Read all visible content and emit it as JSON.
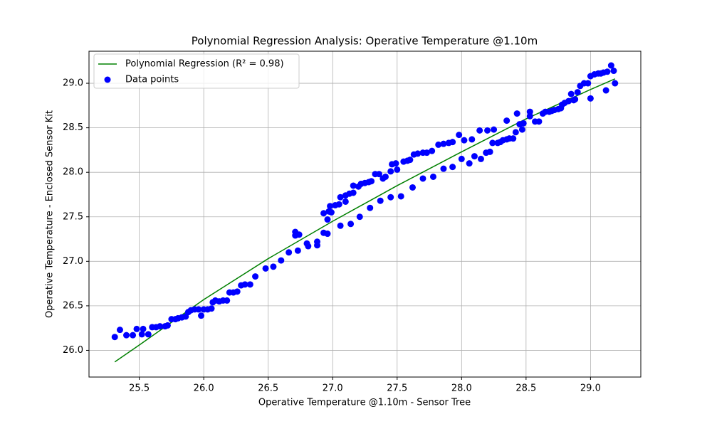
{
  "chart_data": {
    "type": "scatter",
    "title": "Polynomial Regression Analysis: Operative Temperature @1.10m",
    "x_label": "Operative Temperature @1.10m - Sensor Tree",
    "y_label": "Operative Temperature - Enclosed Sensor Kit",
    "xlim": [
      25.11,
      29.39
    ],
    "ylim": [
      25.7,
      29.36
    ],
    "xticks": [
      25.5,
      {
        "value": 26.0,
        "label": "26.0"
      },
      26.5,
      {
        "value": 27.0,
        "label": "27.0"
      },
      27.5,
      {
        "value": 28.0,
        "label": "28.0"
      },
      28.5,
      {
        "value": 29.0,
        "label": "29.0"
      }
    ],
    "yticks": [
      {
        "value": 26.0,
        "label": "26.0"
      },
      26.5,
      {
        "value": 27.0,
        "label": "27.0"
      },
      27.5,
      {
        "value": 28.0,
        "label": "28.0"
      },
      28.5,
      {
        "value": 29.0,
        "label": "29.0"
      }
    ],
    "grid": true,
    "legend": "upper left",
    "series": [
      {
        "name": "Polynomial Regression (R² = 0.98)",
        "type": "line",
        "color": "green",
        "x": [
          25.31,
          25.5,
          26.0,
          26.5,
          27.0,
          27.5,
          28.0,
          28.5,
          29.0,
          29.19
        ],
        "values": [
          25.87,
          26.06,
          26.57,
          27.03,
          27.45,
          27.85,
          28.23,
          28.6,
          28.93,
          29.05
        ]
      },
      {
        "name": "Data points",
        "type": "scatter",
        "color": "blue",
        "x": [
          25.31,
          25.35,
          25.4,
          25.45,
          25.48,
          25.52,
          25.53,
          25.57,
          25.6,
          25.63,
          25.66,
          25.7,
          25.72,
          25.75,
          25.78,
          25.8,
          25.83,
          25.86,
          25.88,
          25.9,
          25.93,
          25.96,
          25.98,
          26.0,
          26.03,
          26.06,
          26.07,
          26.09,
          26.12,
          26.15,
          26.18,
          26.2,
          26.23,
          26.26,
          26.29,
          26.32,
          26.36,
          26.4,
          26.48,
          26.54,
          26.6,
          26.66,
          26.71,
          26.71,
          26.74,
          26.73,
          26.8,
          26.81,
          26.88,
          26.88,
          26.93,
          26.93,
          26.96,
          26.96,
          26.97,
          26.98,
          26.99,
          27.02,
          27.05,
          27.06,
          27.06,
          27.1,
          27.1,
          27.13,
          27.14,
          27.16,
          27.16,
          27.2,
          27.21,
          27.22,
          27.25,
          27.28,
          27.3,
          27.29,
          27.33,
          27.36,
          27.37,
          27.39,
          27.41,
          27.45,
          27.45,
          27.46,
          27.49,
          27.5,
          27.53,
          27.55,
          27.58,
          27.6,
          27.62,
          27.63,
          27.66,
          27.7,
          27.7,
          27.73,
          27.77,
          27.78,
          27.82,
          27.86,
          27.86,
          27.9,
          27.93,
          27.93,
          27.98,
          28.0,
          28.02,
          28.06,
          28.08,
          28.1,
          28.14,
          28.15,
          28.19,
          28.2,
          28.22,
          28.24,
          28.25,
          28.28,
          28.3,
          28.32,
          28.35,
          28.35,
          28.37,
          28.4,
          28.42,
          28.43,
          28.45,
          28.47,
          28.48,
          28.53,
          28.53,
          28.57,
          28.6,
          28.63,
          28.65,
          28.68,
          28.7,
          28.72,
          28.75,
          28.77,
          28.78,
          28.8,
          28.83,
          28.85,
          28.87,
          28.88,
          28.9,
          28.92,
          28.95,
          28.98,
          29.0,
          29.0,
          29.03,
          29.06,
          29.08,
          29.1,
          29.13,
          29.12,
          29.16,
          29.18,
          29.19
        ],
        "values": [
          26.15,
          26.23,
          26.17,
          26.17,
          26.24,
          26.18,
          26.24,
          26.18,
          26.26,
          26.26,
          26.27,
          26.27,
          26.28,
          26.35,
          26.35,
          26.36,
          26.37,
          26.38,
          26.43,
          26.45,
          26.46,
          26.46,
          26.39,
          26.46,
          26.46,
          26.47,
          26.54,
          26.56,
          26.55,
          26.56,
          26.56,
          26.65,
          26.65,
          26.66,
          26.73,
          26.74,
          26.74,
          26.83,
          26.92,
          26.94,
          27.01,
          27.1,
          27.33,
          27.29,
          27.3,
          27.12,
          27.2,
          27.17,
          27.18,
          27.22,
          27.32,
          27.54,
          27.31,
          27.47,
          27.56,
          27.62,
          27.55,
          27.63,
          27.64,
          27.72,
          27.4,
          27.67,
          27.74,
          27.76,
          27.42,
          27.77,
          27.85,
          27.84,
          27.5,
          27.87,
          27.88,
          27.89,
          27.9,
          27.6,
          27.98,
          27.98,
          27.68,
          27.93,
          27.95,
          28.01,
          27.72,
          28.09,
          28.1,
          28.03,
          27.73,
          28.12,
          28.13,
          28.14,
          27.83,
          28.2,
          28.21,
          28.22,
          27.93,
          28.22,
          28.24,
          27.95,
          28.31,
          28.32,
          28.04,
          28.33,
          28.34,
          28.06,
          28.42,
          28.15,
          28.36,
          28.1,
          28.37,
          28.18,
          28.47,
          28.15,
          28.22,
          28.47,
          28.23,
          28.33,
          28.48,
          28.33,
          28.34,
          28.36,
          28.37,
          28.58,
          28.38,
          28.38,
          28.45,
          28.66,
          28.54,
          28.48,
          28.55,
          28.68,
          28.63,
          28.57,
          28.57,
          28.66,
          28.68,
          28.68,
          28.69,
          28.7,
          28.71,
          28.72,
          28.76,
          28.78,
          28.8,
          28.88,
          28.81,
          28.82,
          28.9,
          28.97,
          29.0,
          29.0,
          28.83,
          29.08,
          29.1,
          29.11,
          29.11,
          29.12,
          29.13,
          28.92,
          29.2,
          29.14,
          29.0
        ]
      }
    ]
  }
}
